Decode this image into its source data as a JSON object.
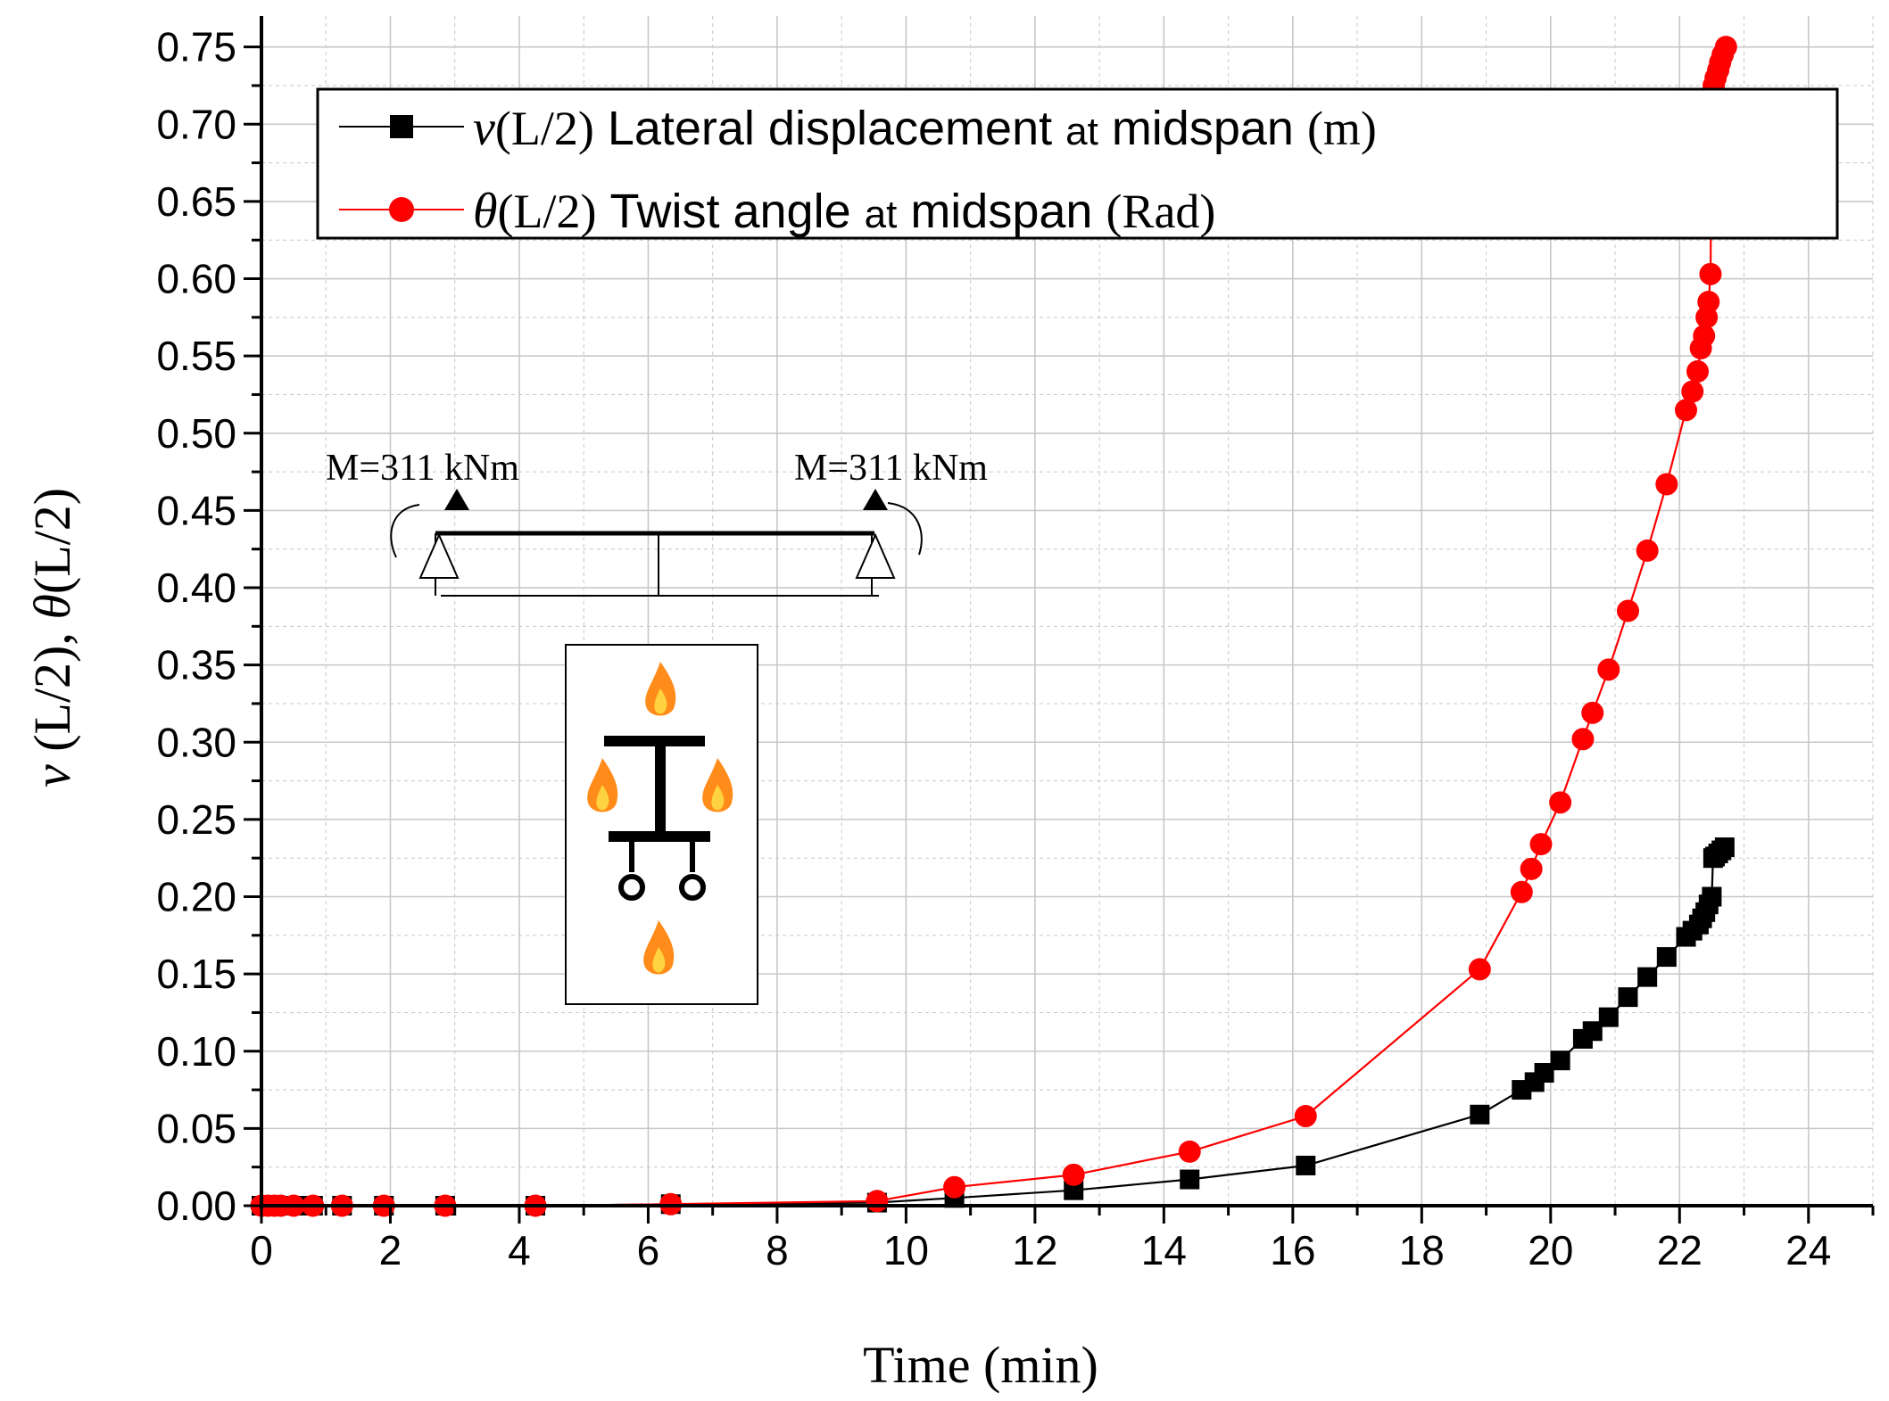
{
  "chart_data": {
    "type": "line",
    "title": "",
    "xlabel": "Time (min)",
    "ylabel": {
      "sym1": "v",
      "part1": " (L/2), ",
      "sym2": "θ",
      "part2": "(L/2)"
    },
    "xlim": [
      0,
      25
    ],
    "ylim": [
      0,
      0.77
    ],
    "xticks": [
      "0",
      "2",
      "4",
      "6",
      "8",
      "10",
      "12",
      "14",
      "16",
      "18",
      "20",
      "22",
      "24"
    ],
    "yticks": [
      "0.00",
      "0.05",
      "0.10",
      "0.15",
      "0.20",
      "0.25",
      "0.30",
      "0.35",
      "0.40",
      "0.45",
      "0.50",
      "0.55",
      "0.60",
      "0.65",
      "0.70",
      "0.75"
    ],
    "grid": true,
    "legend": {
      "position": "top-left",
      "entries": [
        {
          "sym": "v",
          "pre": "(L/2)",
          "main": " Lateral displacement ",
          "small": "at",
          "main2": " midspan ",
          "unit": "(m)"
        },
        {
          "sym": "θ",
          "pre": "(L/2)",
          "main": " Twist angle ",
          "small": "at",
          "main2": " midspan ",
          "unit": "(Rad)"
        }
      ]
    },
    "series": [
      {
        "name": "v(L/2) Lateral displacement at midspan (m)",
        "color": "#000000",
        "marker": "square",
        "x": [
          0,
          0.1,
          0.2,
          0.3,
          0.5,
          0.8,
          1.25,
          1.9,
          2.85,
          4.25,
          6.35,
          9.55,
          10.75,
          12.6,
          14.4,
          16.2,
          18.9,
          19.55,
          19.75,
          19.9,
          20.15,
          20.5,
          20.65,
          20.9,
          21.2,
          21.5,
          21.8,
          22.1,
          22.2,
          22.3,
          22.35,
          22.4,
          22.45,
          22.5,
          22.52,
          22.55,
          22.6,
          22.65,
          22.7
        ],
        "y": [
          0,
          0,
          0,
          0,
          0,
          0,
          0,
          0,
          0,
          0,
          0.001,
          0.002,
          0.005,
          0.01,
          0.017,
          0.026,
          0.059,
          0.075,
          0.08,
          0.086,
          0.094,
          0.108,
          0.113,
          0.122,
          0.135,
          0.148,
          0.161,
          0.174,
          0.178,
          0.182,
          0.186,
          0.19,
          0.195,
          0.2,
          0.225,
          0.226,
          0.228,
          0.23,
          0.232
        ]
      },
      {
        "name": "θ(L/2) Twist angle at midspan (Rad)",
        "color": "#ff0000",
        "marker": "circle",
        "x": [
          0,
          0.1,
          0.2,
          0.3,
          0.5,
          0.8,
          1.25,
          1.9,
          2.85,
          4.25,
          6.35,
          9.55,
          10.75,
          12.6,
          14.4,
          16.2,
          18.9,
          19.55,
          19.7,
          19.85,
          20.15,
          20.5,
          20.65,
          20.9,
          21.2,
          21.5,
          21.8,
          22.1,
          22.2,
          22.28,
          22.33,
          22.38,
          22.42,
          22.45,
          22.48,
          22.5,
          22.51,
          22.53,
          22.56,
          22.6,
          22.63,
          22.67,
          22.72
        ],
        "y": [
          0,
          0,
          0,
          0,
          0,
          0,
          0,
          0,
          0,
          0,
          0.001,
          0.003,
          0.012,
          0.02,
          0.035,
          0.058,
          0.153,
          0.203,
          0.218,
          0.234,
          0.261,
          0.302,
          0.319,
          0.347,
          0.385,
          0.424,
          0.467,
          0.515,
          0.527,
          0.54,
          0.555,
          0.563,
          0.575,
          0.585,
          0.603,
          0.715,
          0.72,
          0.725,
          0.73,
          0.735,
          0.74,
          0.745,
          0.75
        ]
      }
    ],
    "annotations": {
      "moment_left": "M=311 kNm",
      "moment_right": "M=311 kNm"
    }
  },
  "colors": {
    "black_series": "#000000",
    "red_series": "#ff0000",
    "grid": "#c8c8c8",
    "flame_outer": "#ff8c1a",
    "flame_inner": "#ffd23f"
  }
}
